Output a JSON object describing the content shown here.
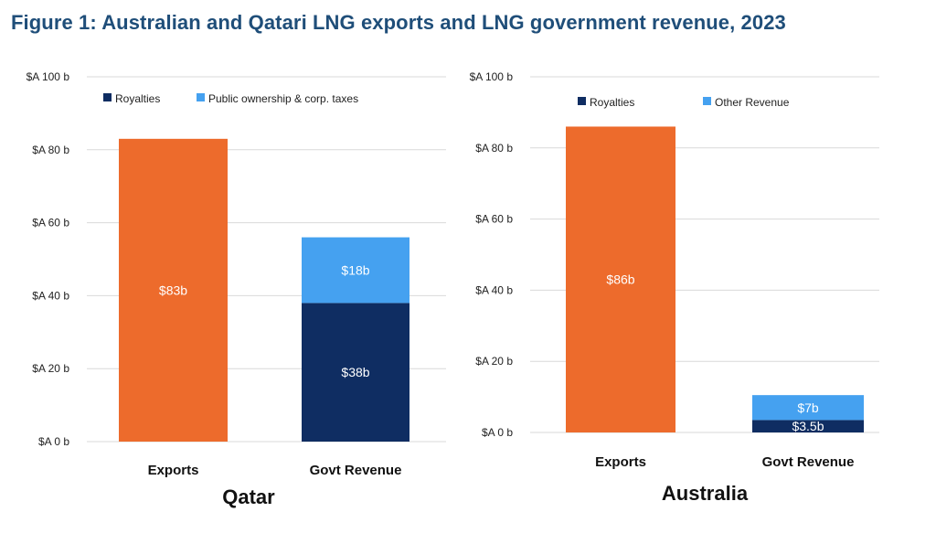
{
  "title": "Figure 1: Australian and Qatari LNG exports and LNG government revenue, 2023",
  "chart_data": [
    {
      "type": "bar",
      "stacked": true,
      "title": "Qatar",
      "categories": [
        "Exports",
        "Govt Revenue"
      ],
      "ylim": [
        0,
        100
      ],
      "y_ticks": [
        0,
        20,
        40,
        60,
        80,
        100
      ],
      "y_tick_labels": [
        "$A 0 b",
        "$A 20 b",
        "$A 40 b",
        "$A 60 b",
        "$A 80 b",
        "$A 100 b"
      ],
      "legend_position": "top",
      "series": [
        {
          "name": "Exports",
          "color": "#ed6b2c",
          "values": [
            83,
            null
          ],
          "labels": [
            "$83b",
            null
          ],
          "in_legend": false
        },
        {
          "name": "Royalties",
          "color": "#0f2d62",
          "values": [
            null,
            38
          ],
          "labels": [
            null,
            "$38b"
          ],
          "in_legend": true
        },
        {
          "name": "Public ownership & corp. taxes",
          "color": "#45a1f0",
          "values": [
            null,
            18
          ],
          "labels": [
            null,
            "$18b"
          ],
          "in_legend": true
        }
      ]
    },
    {
      "type": "bar",
      "stacked": true,
      "title": "Australia",
      "categories": [
        "Exports",
        "Govt Revenue"
      ],
      "ylim": [
        0,
        100
      ],
      "y_ticks": [
        0,
        20,
        40,
        60,
        80,
        100
      ],
      "y_tick_labels": [
        "$A 0 b",
        "$A 20 b",
        "$A 40 b",
        "$A 60 b",
        "$A 80 b",
        "$A 100 b"
      ],
      "legend_position": "top",
      "series": [
        {
          "name": "Exports",
          "color": "#ed6b2c",
          "values": [
            86,
            null
          ],
          "labels": [
            "$86b",
            null
          ],
          "in_legend": false
        },
        {
          "name": "Royalties",
          "color": "#0f2d62",
          "values": [
            null,
            3.5
          ],
          "labels": [
            null,
            "$3.5b"
          ],
          "in_legend": true
        },
        {
          "name": "Other Revenue",
          "color": "#45a1f0",
          "values": [
            null,
            7
          ],
          "labels": [
            null,
            "$7b"
          ],
          "in_legend": true
        }
      ]
    }
  ]
}
